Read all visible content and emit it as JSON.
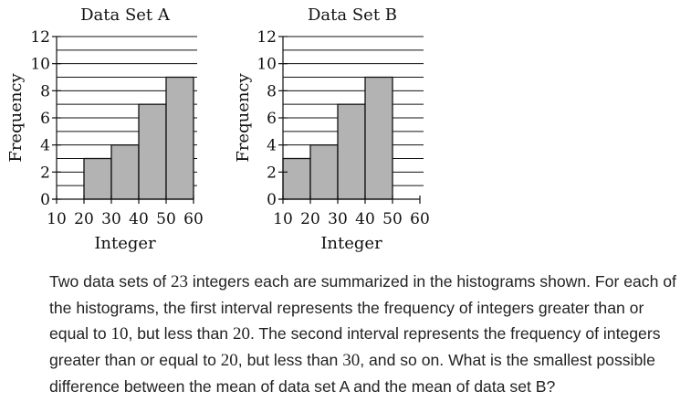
{
  "chart_data": [
    {
      "type": "bar",
      "title": "Data Set A",
      "xlabel": "Integer",
      "ylabel": "Frequency",
      "x_ticks": [
        "10",
        "20",
        "30",
        "40",
        "50",
        "60"
      ],
      "y_ticks": [
        "0",
        "2",
        "4",
        "6",
        "8",
        "10",
        "12"
      ],
      "ylim": [
        0,
        12
      ],
      "xlim": [
        10,
        60
      ],
      "bins": [
        [
          10,
          20
        ],
        [
          20,
          30
        ],
        [
          30,
          40
        ],
        [
          40,
          50
        ],
        [
          50,
          60
        ]
      ],
      "values": [
        0,
        3,
        4,
        7,
        9
      ],
      "grid": true,
      "bar_color": "#b3b3b3"
    },
    {
      "type": "bar",
      "title": "Data Set B",
      "xlabel": "Integer",
      "ylabel": "Frequency",
      "x_ticks": [
        "10",
        "20",
        "30",
        "40",
        "50",
        "60"
      ],
      "y_ticks": [
        "0",
        "2",
        "4",
        "6",
        "8",
        "10",
        "12"
      ],
      "ylim": [
        0,
        12
      ],
      "xlim": [
        10,
        60
      ],
      "bins": [
        [
          10,
          20
        ],
        [
          20,
          30
        ],
        [
          30,
          40
        ],
        [
          40,
          50
        ],
        [
          50,
          60
        ]
      ],
      "values": [
        3,
        4,
        7,
        9,
        0
      ],
      "grid": true,
      "bar_color": "#b3b3b3"
    }
  ],
  "question": {
    "parts": [
      {
        "text": "Two data sets of "
      },
      {
        "num": "23"
      },
      {
        "text": " integers each are summarized in the histograms shown. For each of the histograms, the first interval represents the frequency of integers greater than or equal to "
      },
      {
        "num": "10"
      },
      {
        "text": ", but less than "
      },
      {
        "num": "20"
      },
      {
        "text": ". The second interval represents the frequency of integers greater than or equal to "
      },
      {
        "num": "20"
      },
      {
        "text": ", but less than "
      },
      {
        "num": "30"
      },
      {
        "text": ", and so on. What is the smallest possible difference between the mean of data set A and the mean of data set B?"
      }
    ]
  }
}
